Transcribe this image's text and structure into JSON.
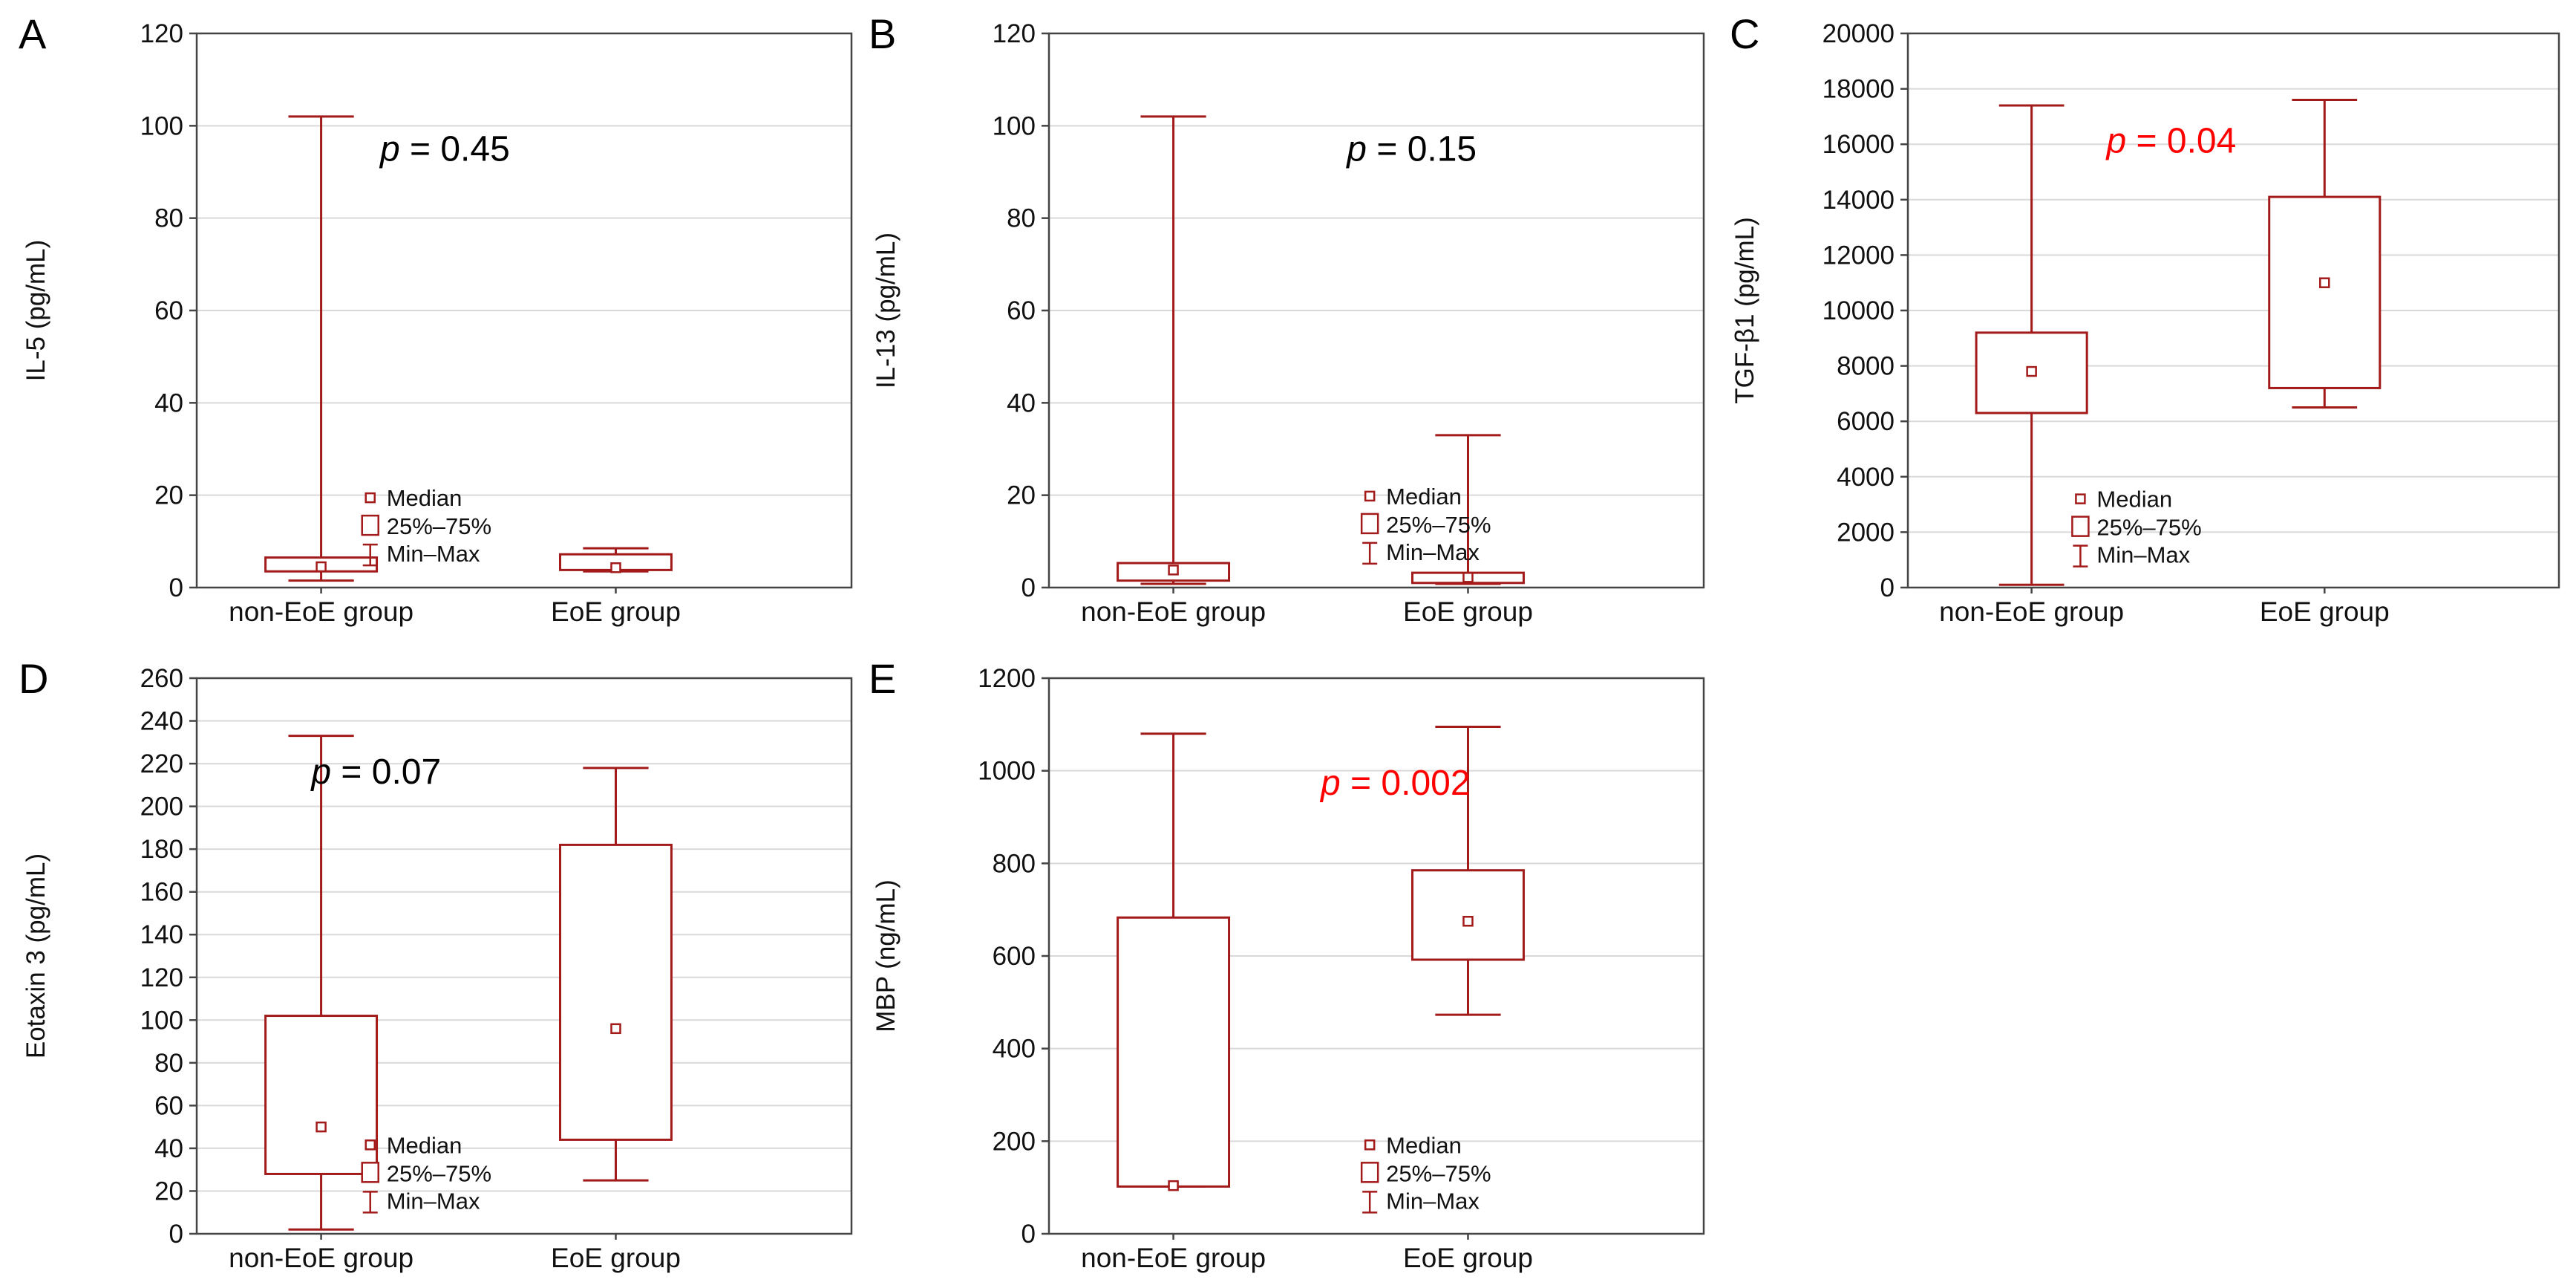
{
  "figure": {
    "colors": {
      "box": "#a31a1a",
      "grid": "#d9d9d9",
      "axis": "#444444",
      "pvalue_significant": "#ff0000",
      "pvalue_default": "#000000"
    }
  },
  "chart_data": [
    {
      "panel": "A",
      "type": "box",
      "ylabel": "IL-5 (pg/mL)",
      "ylim": [
        0,
        120
      ],
      "yticks": [
        0,
        20,
        40,
        60,
        80,
        100,
        120
      ],
      "categories": [
        "non-EoE group",
        "EoE group"
      ],
      "boxes": [
        {
          "min": 1.5,
          "q1": 3.5,
          "median": 4.5,
          "q3": 6.5,
          "max": 102
        },
        {
          "min": 3.5,
          "q1": 3.8,
          "median": 4.3,
          "q3": 7.2,
          "max": 8.5
        }
      ],
      "pvalue": {
        "prefix": "p",
        "text": " = 0.45",
        "significant": false
      },
      "legend": {
        "median": "Median",
        "iqr": "25%–75%",
        "range": "Min–Max"
      }
    },
    {
      "panel": "B",
      "type": "box",
      "ylabel": "IL-13 (pg/mL)",
      "ylim": [
        0,
        120
      ],
      "yticks": [
        0,
        20,
        40,
        60,
        80,
        100,
        120
      ],
      "categories": [
        "non-EoE group",
        "EoE group"
      ],
      "boxes": [
        {
          "min": 0.8,
          "q1": 1.5,
          "median": 3.8,
          "q3": 5.3,
          "max": 102
        },
        {
          "min": 0.8,
          "q1": 1.0,
          "median": 2.2,
          "q3": 3.2,
          "max": 33
        }
      ],
      "pvalue": {
        "prefix": "p",
        "text": " = 0.15",
        "significant": false
      },
      "legend": {
        "median": "Median",
        "iqr": "25%–75%",
        "range": "Min–Max"
      }
    },
    {
      "panel": "C",
      "type": "box",
      "ylabel": "TGF-β1 (pg/mL)",
      "ylim": [
        0,
        20000
      ],
      "yticks": [
        0,
        2000,
        4000,
        6000,
        8000,
        10000,
        12000,
        14000,
        16000,
        18000,
        20000
      ],
      "categories": [
        "non-EoE group",
        "EoE group"
      ],
      "boxes": [
        {
          "min": 100,
          "q1": 6300,
          "median": 7800,
          "q3": 9200,
          "max": 17400
        },
        {
          "min": 6500,
          "q1": 7200,
          "median": 11000,
          "q3": 14100,
          "max": 17600
        }
      ],
      "pvalue": {
        "prefix": "p",
        "text": " = 0.04",
        "significant": true
      },
      "legend": {
        "median": "Median",
        "iqr": "25%–75%",
        "range": "Min–Max"
      }
    },
    {
      "panel": "D",
      "type": "box",
      "ylabel": "Eotaxin 3 (pg/mL)",
      "ylim": [
        0,
        260
      ],
      "yticks": [
        0,
        20,
        40,
        60,
        80,
        100,
        120,
        140,
        160,
        180,
        200,
        220,
        240,
        260
      ],
      "categories": [
        "non-EoE group",
        "EoE group"
      ],
      "boxes": [
        {
          "min": 2,
          "q1": 28,
          "median": 50,
          "q3": 102,
          "max": 233
        },
        {
          "min": 25,
          "q1": 44,
          "median": 96,
          "q3": 182,
          "max": 218
        }
      ],
      "pvalue": {
        "prefix": "p",
        "text": " = 0.07",
        "significant": false
      },
      "legend": {
        "median": "Median",
        "iqr": "25%–75%",
        "range": "Min–Max"
      }
    },
    {
      "panel": "E",
      "type": "box",
      "ylabel": "MBP (ng/mL)",
      "ylim": [
        0,
        1200
      ],
      "yticks": [
        0,
        200,
        400,
        600,
        800,
        1000,
        1200
      ],
      "categories": [
        "non-EoE group",
        "EoE group"
      ],
      "boxes": [
        {
          "min": 102,
          "q1": 102,
          "median": 104,
          "q3": 683,
          "max": 1080
        },
        {
          "min": 473,
          "q1": 592,
          "median": 675,
          "q3": 785,
          "max": 1095
        }
      ],
      "pvalue": {
        "prefix": "p",
        "text": " = 0.002",
        "significant": true
      },
      "legend": {
        "median": "Median",
        "iqr": "25%–75%",
        "range": "Min–Max"
      }
    }
  ]
}
